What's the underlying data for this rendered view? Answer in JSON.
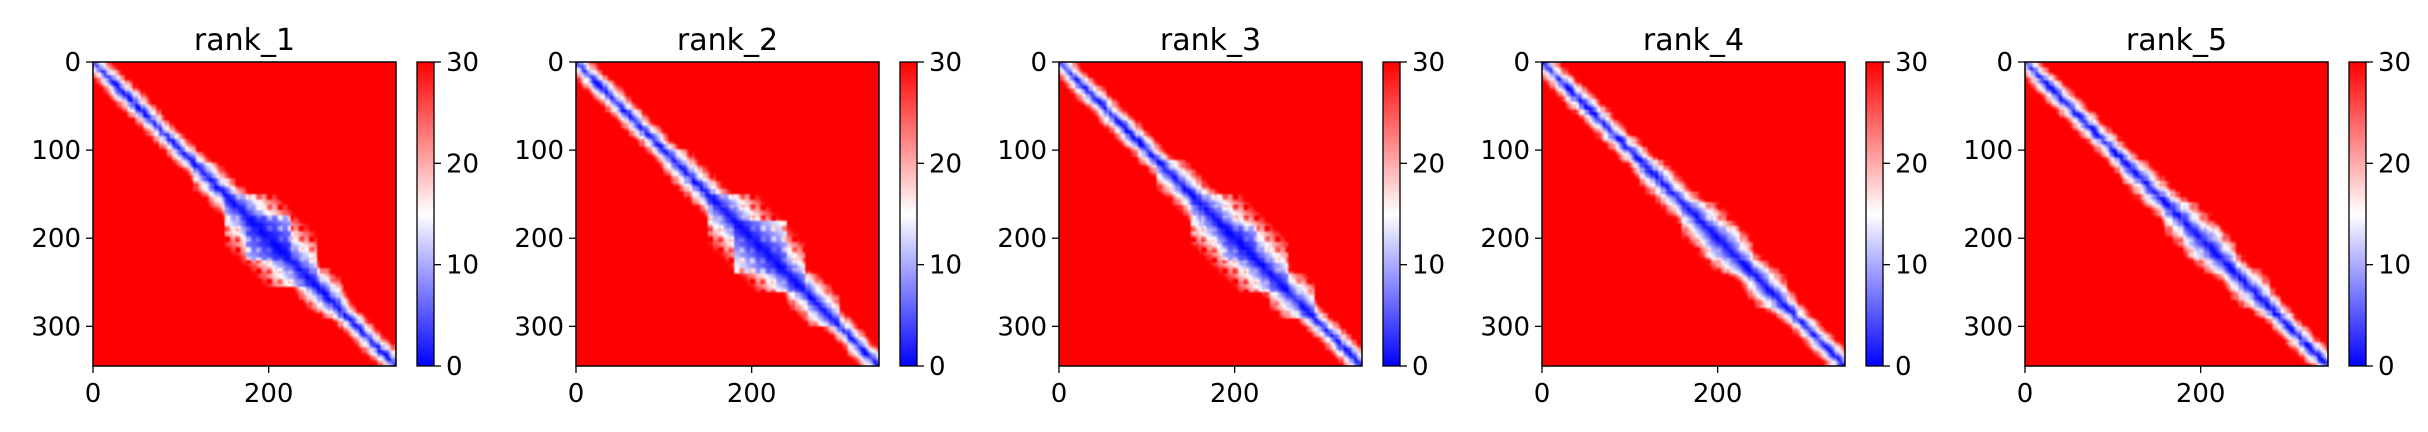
{
  "chart_data": [
    {
      "type": "heatmap",
      "title": "rank_1",
      "xlim": [
        0,
        345
      ],
      "ylim": [
        345,
        0
      ],
      "xticks": [
        0,
        200
      ],
      "yticks": [
        0,
        100,
        200,
        300
      ],
      "colorbar": {
        "range": [
          0,
          30
        ],
        "ticks": [
          0,
          10,
          20,
          30
        ]
      },
      "domains": [
        {
          "start": 115,
          "end": 285,
          "strength": 0.45
        },
        {
          "start": 150,
          "end": 255,
          "strength": 0.9
        },
        {
          "start": 175,
          "end": 225,
          "strength": 1.0
        },
        {
          "start": 235,
          "end": 290,
          "strength": 0.35
        }
      ]
    },
    {
      "type": "heatmap",
      "title": "rank_2",
      "xlim": [
        0,
        345
      ],
      "ylim": [
        345,
        0
      ],
      "xticks": [
        0,
        200
      ],
      "yticks": [
        0,
        100,
        200,
        300
      ],
      "colorbar": {
        "range": [
          0,
          30
        ],
        "ticks": [
          0,
          10,
          20,
          30
        ]
      },
      "domains": [
        {
          "start": 100,
          "end": 300,
          "strength": 0.45
        },
        {
          "start": 150,
          "end": 260,
          "strength": 0.85
        },
        {
          "start": 180,
          "end": 240,
          "strength": 0.8
        },
        {
          "start": 240,
          "end": 300,
          "strength": 0.35
        }
      ]
    },
    {
      "type": "heatmap",
      "title": "rank_3",
      "xlim": [
        0,
        345
      ],
      "ylim": [
        345,
        0
      ],
      "xticks": [
        0,
        200
      ],
      "yticks": [
        0,
        100,
        200,
        300
      ],
      "colorbar": {
        "range": [
          0,
          30
        ],
        "ticks": [
          0,
          10,
          20,
          30
        ]
      },
      "domains": [
        {
          "start": 110,
          "end": 290,
          "strength": 0.6
        },
        {
          "start": 150,
          "end": 260,
          "strength": 0.75
        },
        {
          "start": 185,
          "end": 225,
          "strength": 0.7
        },
        {
          "start": 240,
          "end": 290,
          "strength": 0.35
        }
      ]
    },
    {
      "type": "heatmap",
      "title": "rank_4",
      "xlim": [
        0,
        345
      ],
      "ylim": [
        345,
        0
      ],
      "xticks": [
        0,
        200
      ],
      "yticks": [
        0,
        100,
        200,
        300
      ],
      "colorbar": {
        "range": [
          0,
          30
        ],
        "ticks": [
          0,
          10,
          20,
          30
        ]
      },
      "domains": [
        {
          "start": 110,
          "end": 280,
          "strength": 0.45
        },
        {
          "start": 160,
          "end": 240,
          "strength": 0.5
        },
        {
          "start": 185,
          "end": 225,
          "strength": 0.45
        },
        {
          "start": 235,
          "end": 290,
          "strength": 0.3
        }
      ]
    },
    {
      "type": "heatmap",
      "title": "rank_5",
      "xlim": [
        0,
        345
      ],
      "ylim": [
        345,
        0
      ],
      "xticks": [
        0,
        200
      ],
      "yticks": [
        0,
        100,
        200,
        300
      ],
      "colorbar": {
        "range": [
          0,
          30
        ],
        "ticks": [
          0,
          10,
          20,
          30
        ]
      },
      "domains": [
        {
          "start": 110,
          "end": 280,
          "strength": 0.4
        },
        {
          "start": 160,
          "end": 240,
          "strength": 0.45
        },
        {
          "start": 185,
          "end": 225,
          "strength": 0.4
        },
        {
          "start": 235,
          "end": 290,
          "strength": 0.3
        }
      ]
    }
  ]
}
